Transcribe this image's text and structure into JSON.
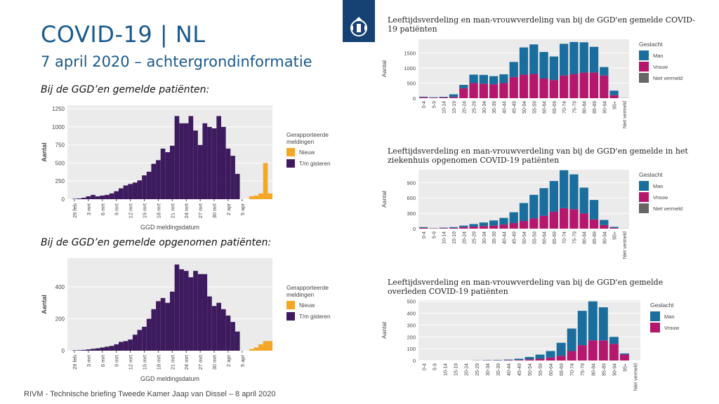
{
  "slide": {
    "title": "COVID-19 | NL",
    "subtitle": "7 april 2020 – achtergrondinformatie",
    "section_1": "Bij de GGD’en gemelde patiënten:",
    "section_2": "Bij de GGD’en gemelde opgenomen patiënten:",
    "footer": "RIVM - Technische briefing Tweede Kamer Jaap van Dissel – 8 april 2020",
    "logo_icon": "rijksoverheid-coat-of-arms-icon"
  },
  "colors": {
    "title": "#1a5a8c",
    "daily_bar": "#3d1b5e",
    "new": "#f5a623",
    "man": "#1a6e9e",
    "vrouw": "#b5176d",
    "niet_vermeld": "#666666",
    "panel_bg": "#ebebeb"
  },
  "chart_data": [
    {
      "type": "bar",
      "id": "gemeld",
      "stacked": true,
      "xlabel": "GGD meldingsdatum",
      "ylabel": "Aantal",
      "ylim": [
        0,
        1300
      ],
      "yticks": [
        0,
        250,
        500,
        750,
        1000,
        1250
      ],
      "xtick_labels": [
        "29 feb",
        "3 mrt",
        "6 mrt",
        "9 mrt",
        "12 mrt",
        "15 mrt",
        "18 mrt",
        "21 mrt",
        "24 mrt",
        "27 mrt",
        "30 mrt",
        "2 apr",
        "5 apr"
      ],
      "legend_title": "Gerapporteerde meldingen",
      "series": [
        {
          "name": "Nieuw",
          "values": [
            0,
            0,
            0,
            0,
            0,
            0,
            0,
            0,
            0,
            0,
            0,
            0,
            0,
            0,
            0,
            0,
            0,
            0,
            0,
            0,
            0,
            0,
            0,
            0,
            0,
            0,
            0,
            0,
            0,
            0,
            0,
            0,
            0,
            0,
            0,
            0,
            0,
            0,
            0,
            40,
            50,
            80,
            500,
            80
          ]
        },
        {
          "name": "T/m gisteren",
          "values": [
            0,
            5,
            10,
            20,
            40,
            60,
            40,
            50,
            60,
            80,
            110,
            150,
            190,
            210,
            230,
            260,
            330,
            380,
            490,
            540,
            700,
            650,
            740,
            1150,
            1050,
            1050,
            1150,
            950,
            750,
            1050,
            1000,
            980,
            1150,
            1000,
            700,
            600,
            350,
            0,
            0,
            0,
            0,
            0,
            0,
            0
          ]
        }
      ]
    },
    {
      "type": "bar",
      "id": "opgenomen",
      "stacked": true,
      "xlabel": "GGD meldingsdatum",
      "ylabel": "Aantal",
      "ylim": [
        0,
        580
      ],
      "yticks": [
        0,
        200,
        400
      ],
      "xtick_labels": [
        "29 feb",
        "3 mrt",
        "6 mrt",
        "9 mrt",
        "12 mrt",
        "15 mrt",
        "18 mrt",
        "21 mrt",
        "24 mrt",
        "27 mrt",
        "30 mrt",
        "2 apr",
        "5 apr"
      ],
      "legend_title": "Gerapporteerde meldingen",
      "series": [
        {
          "name": "Nieuw",
          "values": [
            0,
            0,
            0,
            0,
            0,
            0,
            0,
            0,
            0,
            0,
            0,
            0,
            0,
            0,
            0,
            0,
            0,
            0,
            0,
            0,
            0,
            0,
            0,
            0,
            0,
            0,
            0,
            0,
            0,
            0,
            0,
            0,
            0,
            0,
            0,
            0,
            0,
            0,
            0,
            10,
            20,
            40,
            60,
            60
          ]
        },
        {
          "name": "T/m gisteren",
          "values": [
            0,
            2,
            3,
            5,
            8,
            12,
            15,
            20,
            25,
            30,
            40,
            55,
            60,
            70,
            100,
            130,
            150,
            200,
            260,
            310,
            330,
            300,
            370,
            540,
            510,
            500,
            460,
            500,
            480,
            480,
            340,
            280,
            300,
            260,
            220,
            180,
            120,
            0,
            0,
            0,
            0,
            0,
            0,
            0
          ]
        }
      ]
    },
    {
      "type": "bar",
      "id": "leeftijd_gemeld",
      "stacked": true,
      "title": "Leeftijdsverdeling en man-vrouwverdeling van bij de GGD'en gemelde COVID-19 patiënten",
      "ylabel": "Aantal",
      "ylim": [
        0,
        1950
      ],
      "yticks": [
        0,
        500,
        1000,
        1500
      ],
      "categories": [
        "0-4",
        "5-9",
        "10-14",
        "15-19",
        "20-24",
        "25-29",
        "30-34",
        "35-39",
        "40-44",
        "45-49",
        "50-54",
        "55-59",
        "60-64",
        "65-69",
        "70-74",
        "75-79",
        "80-84",
        "85-89",
        "90-94",
        "95+",
        "Niet vermeld"
      ],
      "legend_title": "Geslacht",
      "series": [
        {
          "name": "Niet vermeld",
          "values": [
            0,
            0,
            0,
            0,
            0,
            0,
            0,
            0,
            0,
            0,
            0,
            0,
            0,
            0,
            0,
            0,
            0,
            0,
            0,
            0,
            5
          ]
        },
        {
          "name": "Vrouw",
          "values": [
            30,
            15,
            25,
            40,
            330,
            500,
            480,
            460,
            500,
            700,
            780,
            800,
            650,
            600,
            750,
            800,
            850,
            850,
            750,
            100,
            0
          ]
        },
        {
          "name": "Man",
          "values": [
            20,
            15,
            20,
            90,
            110,
            280,
            290,
            270,
            290,
            500,
            900,
            980,
            880,
            780,
            1050,
            1060,
            1000,
            850,
            280,
            150,
            0
          ]
        }
      ]
    },
    {
      "type": "bar",
      "id": "leeftijd_opgenomen",
      "stacked": true,
      "title": "Leeftijdsverdeling en man-vrouwverdeling van bij de GGD'en gemelde in het ziekenhuis opgenomen COVID-19 patiënten",
      "ylabel": "Aantal",
      "ylim": [
        0,
        1150
      ],
      "yticks": [
        0,
        300,
        600,
        900
      ],
      "categories": [
        "0-4",
        "5-9",
        "10-14",
        "15-19",
        "20-24",
        "25-29",
        "30-34",
        "35-39",
        "40-44",
        "45-49",
        "50-54",
        "55-59",
        "60-64",
        "65-69",
        "70-74",
        "75-79",
        "80-84",
        "85-89",
        "90-94",
        "95+",
        "Niet vermeld"
      ],
      "legend_title": "Geslacht",
      "series": [
        {
          "name": "Niet vermeld",
          "values": [
            0,
            0,
            0,
            0,
            0,
            0,
            0,
            0,
            0,
            0,
            0,
            0,
            0,
            0,
            0,
            0,
            0,
            0,
            0,
            0,
            3
          ]
        },
        {
          "name": "Vrouw",
          "values": [
            15,
            5,
            10,
            15,
            30,
            40,
            50,
            60,
            80,
            110,
            150,
            200,
            250,
            330,
            400,
            380,
            300,
            180,
            70,
            15,
            0
          ]
        },
        {
          "name": "Man",
          "values": [
            15,
            5,
            10,
            15,
            30,
            50,
            70,
            100,
            130,
            210,
            350,
            460,
            540,
            600,
            740,
            680,
            500,
            380,
            100,
            20,
            0
          ]
        }
      ]
    },
    {
      "type": "bar",
      "id": "leeftijd_overleden",
      "stacked": true,
      "title": "Leeftijdsverdeling en man-vrouwverdeling van bij de GGD'en gemelde overleden COVID-19 patiënten",
      "ylabel": "Aantal",
      "ylim": [
        0,
        510
      ],
      "yticks": [
        0,
        100,
        200,
        300,
        400,
        500
      ],
      "categories": [
        "0-4",
        "5-9",
        "10-14",
        "15-19",
        "20-24",
        "25-29",
        "30-34",
        "35-39",
        "40-44",
        "45-49",
        "50-54",
        "55-59",
        "60-64",
        "65-69",
        "70-74",
        "75-79",
        "80-84",
        "85-89",
        "90-94",
        "95+",
        "Niet vermeld"
      ],
      "legend_title": "Geslacht",
      "series": [
        {
          "name": "Vrouw",
          "values": [
            0,
            0,
            0,
            0,
            0,
            1,
            2,
            2,
            3,
            5,
            10,
            15,
            25,
            40,
            80,
            130,
            170,
            170,
            140,
            50,
            0
          ]
        },
        {
          "name": "Man",
          "values": [
            0,
            0,
            0,
            0,
            0,
            1,
            2,
            3,
            5,
            10,
            20,
            35,
            55,
            110,
            190,
            290,
            330,
            280,
            60,
            10,
            0
          ]
        }
      ]
    }
  ]
}
